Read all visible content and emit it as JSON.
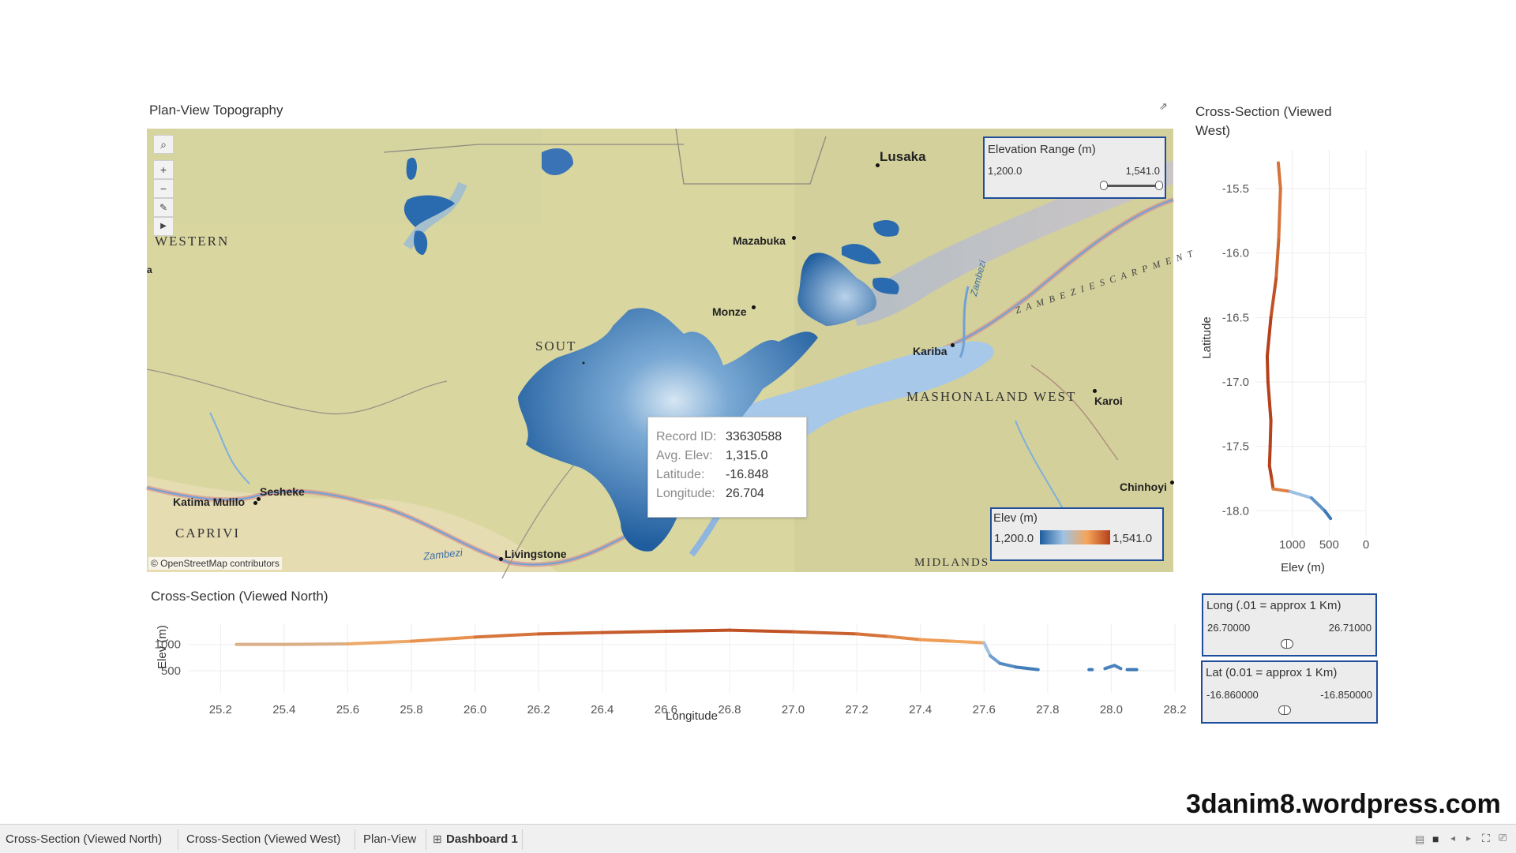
{
  "plan_view": {
    "title": "Plan-View Topography",
    "map_labels": {
      "lusaka": "Lusaka",
      "mazabuka": "Mazabuka",
      "monze": "Monze",
      "kariba": "Kariba",
      "karoi": "Karoi",
      "chinhoyi": "Chinhoyi",
      "sesheke": "Sesheke",
      "katima": "Katima Mulilo",
      "livingstone": "Livingstone",
      "western": "WESTERN",
      "south": "SOUT",
      "caprivi": "CAPRIVI",
      "mashonaland": "MASHONALAND WEST",
      "midlands": "MIDLANDS",
      "zambezi_escarpment": "Z A M B E Z I  E S C A R P M E N T",
      "zambezi_river": "Zambezi",
      "zambezi_river2": "Zambezi",
      "edge_a": "a"
    },
    "attribution": "© OpenStreetMap contributors",
    "elevation_range": {
      "title": "Elevation Range (m)",
      "min": "1,200.0",
      "max": "1,541.0"
    },
    "elev_legend": {
      "title": "Elev (m)",
      "min": "1,200.0",
      "max": "1,541.0"
    },
    "tooltip": {
      "record_id_label": "Record ID:",
      "record_id": "33630588",
      "avg_elev_label": "Avg. Elev:",
      "avg_elev": "1,315.0",
      "latitude_label": "Latitude:",
      "latitude": "-16.848",
      "longitude_label": "Longitude:",
      "longitude": "26.704"
    }
  },
  "north_section": {
    "title": "Cross-Section (Viewed North)",
    "xlabel": "Longitude",
    "ylabel": "Elev (m)",
    "x_ticks": [
      "25.2",
      "25.4",
      "25.6",
      "25.8",
      "26.0",
      "26.2",
      "26.4",
      "26.6",
      "26.8",
      "27.0",
      "27.2",
      "27.4",
      "27.6",
      "27.8",
      "28.0",
      "28.2"
    ],
    "y_ticks": [
      "1000",
      "500"
    ]
  },
  "west_section": {
    "title": "Cross-Section (Viewed West)",
    "xlabel": "Elev (m)",
    "ylabel": "Latitude",
    "x_ticks": [
      "1000",
      "500",
      "0"
    ],
    "y_ticks": [
      "-15.5",
      "-16.0",
      "-16.5",
      "-17.0",
      "-17.5",
      "-18.0"
    ]
  },
  "long_filter": {
    "title": "Long (.01 = approx 1 Km)",
    "min": "26.70000",
    "max": "26.71000"
  },
  "lat_filter": {
    "title": "Lat (0.01 = approx 1 Km)",
    "min": "-16.860000",
    "max": "-16.850000"
  },
  "tabs": [
    "Cross-Section (Viewed North)",
    "Cross-Section (Viewed West)",
    "Plan-View",
    "Dashboard 1"
  ],
  "active_tab": "Dashboard 1",
  "watermark": "3danim8.wordpress.com",
  "colors": {
    "low": "#2b6cb0",
    "mid": "#f5a65b",
    "high": "#b5401a",
    "accent": "#1e4d9b"
  },
  "chart_data": [
    {
      "type": "line",
      "title": "Cross-Section (Viewed North)",
      "xlabel": "Longitude",
      "ylabel": "Elev (m)",
      "xlim": [
        25.1,
        28.2
      ],
      "ylim": [
        200,
        1400
      ],
      "x": [
        25.25,
        25.4,
        25.6,
        25.8,
        26.0,
        26.2,
        26.4,
        26.6,
        26.8,
        27.0,
        27.2,
        27.3,
        27.4,
        27.5,
        27.6,
        27.62,
        27.65,
        27.7,
        27.77
      ],
      "y": [
        1000,
        1000,
        1010,
        1060,
        1140,
        1200,
        1225,
        1250,
        1270,
        1240,
        1200,
        1150,
        1090,
        1060,
        1030,
        780,
        640,
        570,
        520
      ],
      "segments": [
        {
          "x": [
            27.93,
            27.94
          ],
          "y": [
            520,
            520
          ]
        },
        {
          "x": [
            27.98,
            28.01,
            28.03
          ],
          "y": [
            540,
            600,
            540
          ]
        },
        {
          "x": [
            28.05,
            28.08
          ],
          "y": [
            520,
            520
          ]
        }
      ]
    },
    {
      "type": "line",
      "title": "Cross-Section (Viewed West)",
      "xlabel": "Elev (m)",
      "ylabel": "Latitude",
      "xlim": [
        1500,
        0
      ],
      "ylim": [
        -18.2,
        -15.2
      ],
      "elev": [
        1190,
        1160,
        1185,
        1220,
        1290,
        1340,
        1330,
        1290,
        1300,
        1310,
        1280,
        1260,
        1030,
        740,
        560,
        480
      ],
      "lat": [
        -15.3,
        -15.5,
        -15.9,
        -16.2,
        -16.5,
        -16.8,
        -17.0,
        -17.3,
        -17.5,
        -17.65,
        -17.75,
        -17.83,
        -17.85,
        -17.9,
        -18.0,
        -18.06
      ]
    }
  ]
}
